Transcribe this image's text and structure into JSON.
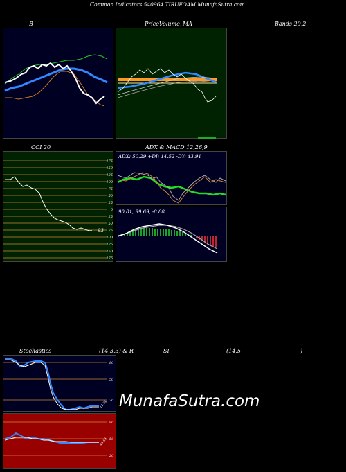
{
  "header": {
    "title": "Common Indicators 540964 TIRUFOAM MunafaSutra.com",
    "title_c": "C",
    "title_rest": "ommon  Indicators 540964  TIRUFOAM MunafaSutra.com"
  },
  "top_labels": {
    "b": "B",
    "price": "Price,",
    "volume": "Volume,",
    "ma": "MA",
    "bands": "Bands 20,2"
  },
  "mid_labels": {
    "cci": "CCI 20",
    "adx": "ADX  & MACD 12,26,9"
  },
  "cci": {
    "ticks": [
      "175",
      "150",
      "125",
      "100",
      "75",
      "50",
      "25",
      "0",
      "25",
      "50",
      "75",
      "100",
      "125",
      "150",
      "175"
    ],
    "current": "93"
  },
  "adx": {
    "readout": "ADX: 50.29  +DI: 14.52  -DY: 43.91"
  },
  "macd": {
    "readout": "90.81,  99.69,  -8.88"
  },
  "bottom_labels": {
    "stoch": "Stochastics",
    "stoch_params": "(14,3,3) & R",
    "si": "SI",
    "rsi_params": "(14,5",
    "close_paren": ")"
  },
  "stoch": {
    "ticks": [
      "80",
      "50",
      "20"
    ],
    "current": "11.34"
  },
  "rsi": {
    "ticks": [
      "80",
      "50",
      "20"
    ],
    "current": "45.89"
  },
  "watermark": "MunafaSutra.com",
  "colors": {
    "panel_bg_dark": "#000022",
    "panel_bg_green": "#002200",
    "panel_bg_red": "#990000",
    "grid_orange": "#cc8833",
    "accent_blue": "#3388ff",
    "green_line": "#22dd22"
  }
}
